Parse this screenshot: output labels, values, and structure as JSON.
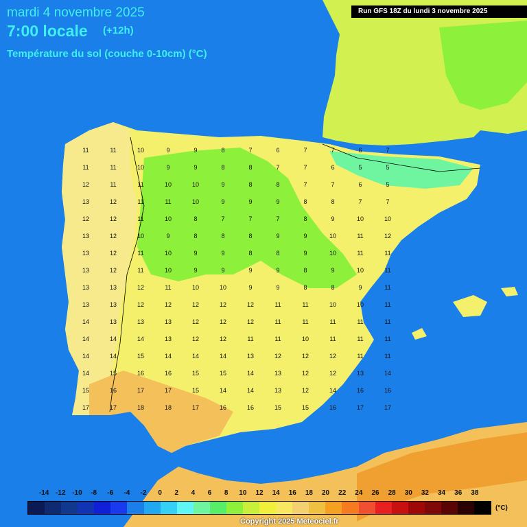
{
  "header": {
    "date": "mardi 4 novembre 2025",
    "time": "7:00 locale",
    "offset": "(+12h)",
    "parameter": "Température du sol (couche 0-10cm) (°C)"
  },
  "run_label": "Run GFS 18Z du lundi 3 novembre 2025",
  "legend": {
    "labels": [
      "-14",
      "-12",
      "-10",
      "-8",
      "-6",
      "-4",
      "-2",
      "0",
      "2",
      "4",
      "6",
      "8",
      "10",
      "12",
      "14",
      "16",
      "18",
      "20",
      "22",
      "24",
      "26",
      "28",
      "30",
      "32",
      "34",
      "36",
      "38"
    ],
    "unit": "(°C)",
    "colors": [
      "#0b1a55",
      "#0e2a70",
      "#10388f",
      "#1034b4",
      "#1020d8",
      "#1a3af0",
      "#1a7fe8",
      "#20a8f0",
      "#35d0f5",
      "#5ff5f5",
      "#6ff5a0",
      "#55ee66",
      "#8df03a",
      "#c8f03a",
      "#f0f03a",
      "#f8e860",
      "#f5d070",
      "#f0c040",
      "#f5a020",
      "#f57a20",
      "#f05030",
      "#e82020",
      "#c81010",
      "#a00808",
      "#800808",
      "#5a0404",
      "#2a0202",
      "#000000"
    ]
  },
  "colors": {
    "sea": "#1a7fe8",
    "land_cool": "#d2f050",
    "land_mild": "#f4f06c",
    "land_warm": "#f7ea8c",
    "land_green": "#7fe85a",
    "land_hot": "#f4c05a",
    "land_orange": "#f0a030",
    "title": "#3ff0f0"
  },
  "grid_rows": [
    [
      "11",
      "11",
      "10",
      "9",
      "9",
      "8",
      "7",
      "6",
      "7",
      "7",
      "6",
      "7"
    ],
    [
      "11",
      "11",
      "10",
      "9",
      "9",
      "8",
      "8",
      "7",
      "7",
      "6",
      "5",
      "5"
    ],
    [
      "12",
      "11",
      "11",
      "10",
      "10",
      "9",
      "8",
      "8",
      "7",
      "7",
      "6",
      "5"
    ],
    [
      "13",
      "12",
      "11",
      "11",
      "10",
      "9",
      "9",
      "9",
      "8",
      "8",
      "7",
      "7"
    ],
    [
      "12",
      "12",
      "11",
      "10",
      "8",
      "7",
      "7",
      "7",
      "8",
      "9",
      "10",
      "10"
    ],
    [
      "13",
      "12",
      "10",
      "9",
      "8",
      "8",
      "8",
      "9",
      "9",
      "10",
      "11",
      "12"
    ],
    [
      "13",
      "12",
      "11",
      "10",
      "9",
      "9",
      "8",
      "8",
      "9",
      "10",
      "11",
      "11"
    ],
    [
      "13",
      "12",
      "11",
      "10",
      "9",
      "9",
      "9",
      "9",
      "8",
      "9",
      "10",
      "11"
    ],
    [
      "13",
      "13",
      "12",
      "11",
      "10",
      "10",
      "9",
      "9",
      "8",
      "8",
      "9",
      "11"
    ],
    [
      "13",
      "13",
      "12",
      "12",
      "12",
      "12",
      "12",
      "11",
      "11",
      "10",
      "10",
      "11"
    ],
    [
      "14",
      "13",
      "13",
      "13",
      "12",
      "12",
      "12",
      "11",
      "11",
      "11",
      "11",
      "11"
    ],
    [
      "14",
      "14",
      "14",
      "13",
      "12",
      "12",
      "11",
      "11",
      "10",
      "11",
      "11",
      "11"
    ],
    [
      "14",
      "14",
      "15",
      "14",
      "14",
      "14",
      "13",
      "12",
      "12",
      "12",
      "11",
      "11"
    ],
    [
      "14",
      "15",
      "16",
      "16",
      "15",
      "15",
      "14",
      "13",
      "12",
      "12",
      "13",
      "14"
    ],
    [
      "15",
      "16",
      "17",
      "17",
      "15",
      "14",
      "14",
      "13",
      "12",
      "14",
      "16",
      "16"
    ],
    [
      "17",
      "17",
      "18",
      "18",
      "17",
      "16",
      "16",
      "15",
      "15",
      "16",
      "17",
      "17"
    ]
  ]
}
